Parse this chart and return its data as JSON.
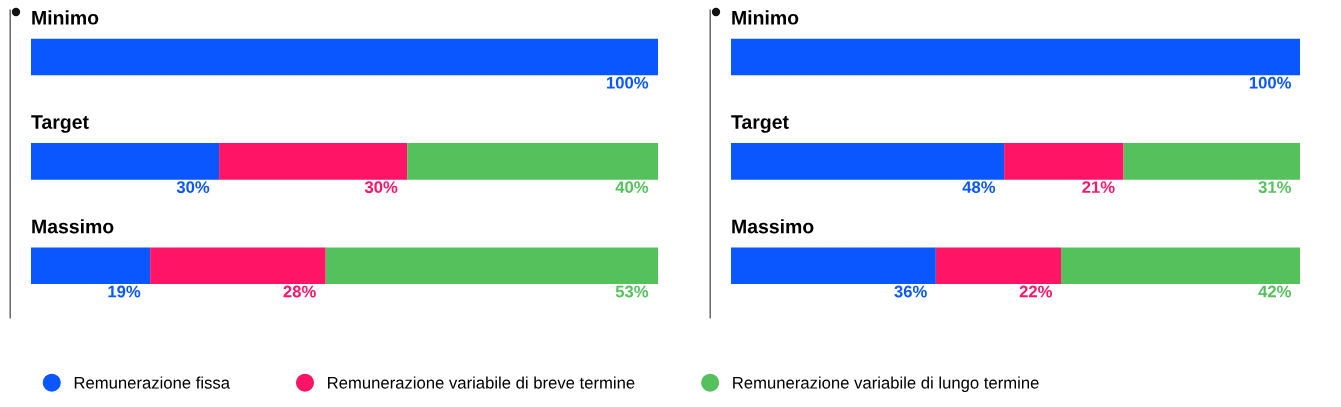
{
  "chart_data": [
    {
      "type": "bar",
      "orientation": "horizontal",
      "stacked": true,
      "categories": [
        "Minimo",
        "Target",
        "Massimo"
      ],
      "xlim": [
        0,
        100
      ],
      "tick_labels": false,
      "legend": "bottom",
      "series": [
        {
          "name": "Remunerazione fissa",
          "color": "#0a57ff",
          "values": [
            100,
            30,
            19
          ],
          "value_labels": [
            "100%",
            "30%",
            "19%"
          ]
        },
        {
          "name": "Remunerazione variabile di breve termine",
          "color": "#ff1466",
          "values": [
            null,
            30,
            28
          ],
          "value_labels": [
            null,
            "30%",
            "28%"
          ]
        },
        {
          "name": "Remunerazione variabile di lungo termine",
          "color": "#55c15c",
          "values": [
            null,
            40,
            53
          ],
          "value_labels": [
            null,
            "40%",
            "53%"
          ]
        }
      ]
    },
    {
      "type": "bar",
      "orientation": "horizontal",
      "stacked": true,
      "categories": [
        "Minimo",
        "Target",
        "Massimo"
      ],
      "xlim": [
        0,
        100
      ],
      "tick_labels": false,
      "series": [
        {
          "color": "#0a57ff",
          "values": [
            100,
            48,
            36
          ],
          "value_labels": [
            "100%",
            "48%",
            "36%"
          ]
        },
        {
          "color": "#ff1466",
          "values": [
            null,
            21,
            22
          ],
          "value_labels": [
            null,
            "21%",
            "22%"
          ]
        },
        {
          "color": "#55c15c",
          "values": [
            null,
            31,
            42
          ],
          "value_labels": [
            null,
            "31%",
            "42%"
          ]
        }
      ]
    }
  ]
}
